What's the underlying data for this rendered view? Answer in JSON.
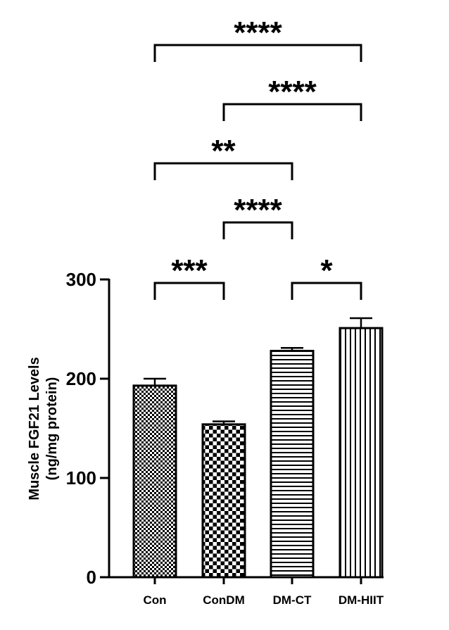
{
  "chart_data": {
    "type": "bar",
    "categories": [
      "Con",
      "ConDM",
      "DM-CT",
      "DM-HIIT"
    ],
    "values": [
      193,
      154,
      228,
      251
    ],
    "errors": [
      7,
      3,
      3,
      10
    ],
    "ylabel_line1": "Muscle FGF21 Levels",
    "ylabel_line2": "(ng/mg protein)",
    "ylim": [
      0,
      300
    ],
    "yticks": [
      0,
      100,
      200,
      300
    ],
    "ytick_labels": [
      "0",
      "100",
      "200",
      "300"
    ],
    "patterns": [
      "fine-checker",
      "coarse-checker",
      "horizontal-lines",
      "vertical-lines"
    ],
    "grid": false,
    "comparisons": [
      {
        "from": "Con",
        "to": "ConDM",
        "label": "***"
      },
      {
        "from": "DM-CT",
        "to": "DM-HIIT",
        "label": "*"
      },
      {
        "from": "ConDM",
        "to": "DM-CT",
        "label": "****"
      },
      {
        "from": "Con",
        "to": "DM-CT",
        "label": "**"
      },
      {
        "from": "ConDM",
        "to": "DM-HIIT",
        "label": "****"
      },
      {
        "from": "Con",
        "to": "DM-HIIT",
        "label": "****"
      }
    ]
  }
}
